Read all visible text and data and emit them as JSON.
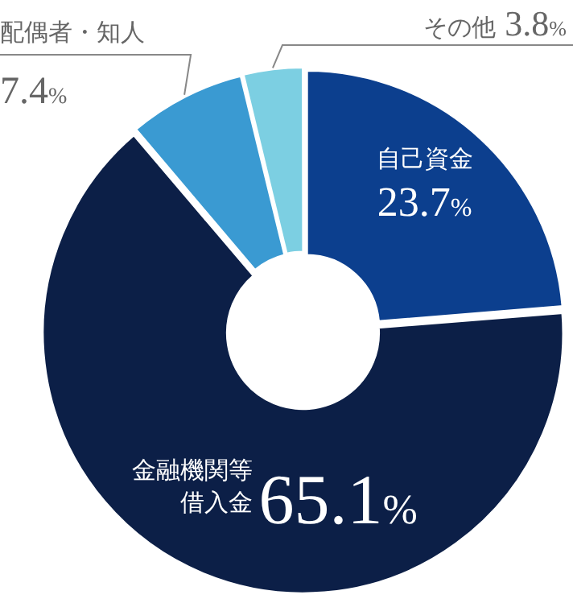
{
  "chart_data": {
    "type": "donut",
    "categories": [
      "自己資金",
      "金融機関等借入金",
      "配偶者・知人",
      "その他"
    ],
    "values": [
      23.7,
      65.1,
      7.4,
      3.8
    ],
    "value_labels": [
      "23.7%",
      "65.1%",
      "7.4%",
      "3.8%"
    ],
    "colors": [
      "#0c3f8e",
      "#0c1f47",
      "#3a9ad2",
      "#7ccfe2"
    ],
    "legend": false
  }
}
